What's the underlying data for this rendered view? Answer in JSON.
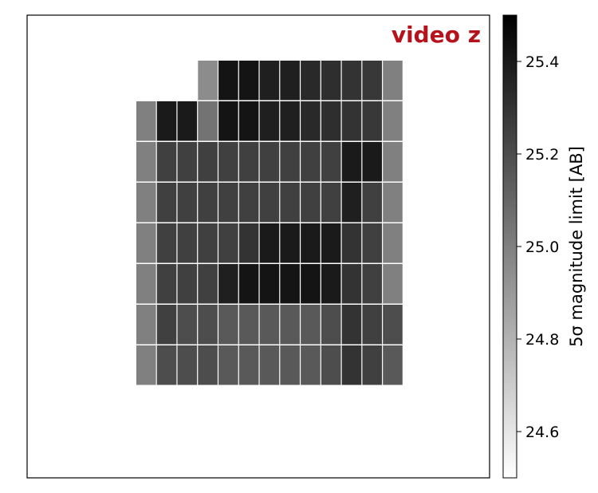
{
  "chart_data": {
    "type": "heatmap",
    "title": "video z",
    "title_color": "#b5121b",
    "title_placement": "top-right",
    "colormap": "gray_r",
    "colorbar": {
      "label": "5σ magnitude limit [AB]",
      "range": [
        24.5,
        25.5
      ],
      "ticks": [
        24.6,
        24.8,
        25.0,
        25.2,
        25.4
      ],
      "tick_labels": [
        "24.6",
        "24.8",
        "25.0",
        "25.2",
        "25.4"
      ]
    },
    "grid": false,
    "axes_ticks_visible": false,
    "grid_cols": 13,
    "grid_rows": 8,
    "values": [
      [
        null,
        null,
        null,
        24.95,
        25.42,
        25.42,
        25.38,
        25.38,
        25.34,
        25.32,
        25.3,
        25.28,
        25.0
      ],
      [
        25.0,
        25.4,
        25.4,
        25.05,
        25.42,
        25.42,
        25.38,
        25.38,
        25.34,
        25.32,
        25.3,
        25.28,
        25.0
      ],
      [
        25.0,
        25.25,
        25.25,
        25.25,
        25.25,
        25.25,
        25.25,
        25.25,
        25.25,
        25.25,
        25.4,
        25.4,
        25.0
      ],
      [
        25.0,
        25.25,
        25.25,
        25.25,
        25.25,
        25.25,
        25.25,
        25.25,
        25.25,
        25.25,
        25.38,
        25.25,
        25.0
      ],
      [
        25.0,
        25.25,
        25.25,
        25.25,
        25.25,
        25.3,
        25.4,
        25.4,
        25.4,
        25.4,
        25.3,
        25.25,
        25.0
      ],
      [
        25.0,
        25.25,
        25.25,
        25.25,
        25.38,
        25.42,
        25.42,
        25.42,
        25.42,
        25.4,
        25.3,
        25.25,
        25.0
      ],
      [
        25.0,
        25.25,
        25.2,
        25.2,
        25.15,
        25.15,
        25.15,
        25.15,
        25.15,
        25.2,
        25.3,
        25.25,
        25.2
      ],
      [
        25.0,
        25.2,
        25.2,
        25.2,
        25.15,
        25.15,
        25.15,
        25.15,
        25.15,
        25.2,
        25.3,
        25.25,
        25.15
      ]
    ]
  }
}
